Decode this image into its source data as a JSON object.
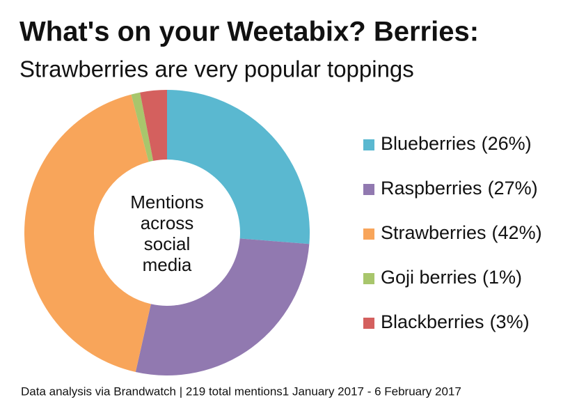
{
  "chart_data": {
    "type": "donut",
    "title": "What's on your Weetabix? Berries:",
    "subtitle": "Strawberries are very popular toppings",
    "center_label": "Mentions across social media",
    "categories": [
      "Blueberries",
      "Raspberries",
      "Strawberries",
      "Goji berries",
      "Blackberries"
    ],
    "values": [
      26,
      27,
      42,
      1,
      3
    ],
    "value_labels": [
      "(26%)",
      "(27%)",
      "(42%)",
      "(1%)",
      "(3%)"
    ],
    "colors": [
      "#5ab8d0",
      "#9179b0",
      "#f8a55a",
      "#a8c66c",
      "#d4605e"
    ],
    "legend": "right",
    "footer": "Data analysis via Brandwatch | 219 total mentions1 January 2017 - 6 February 2017"
  }
}
